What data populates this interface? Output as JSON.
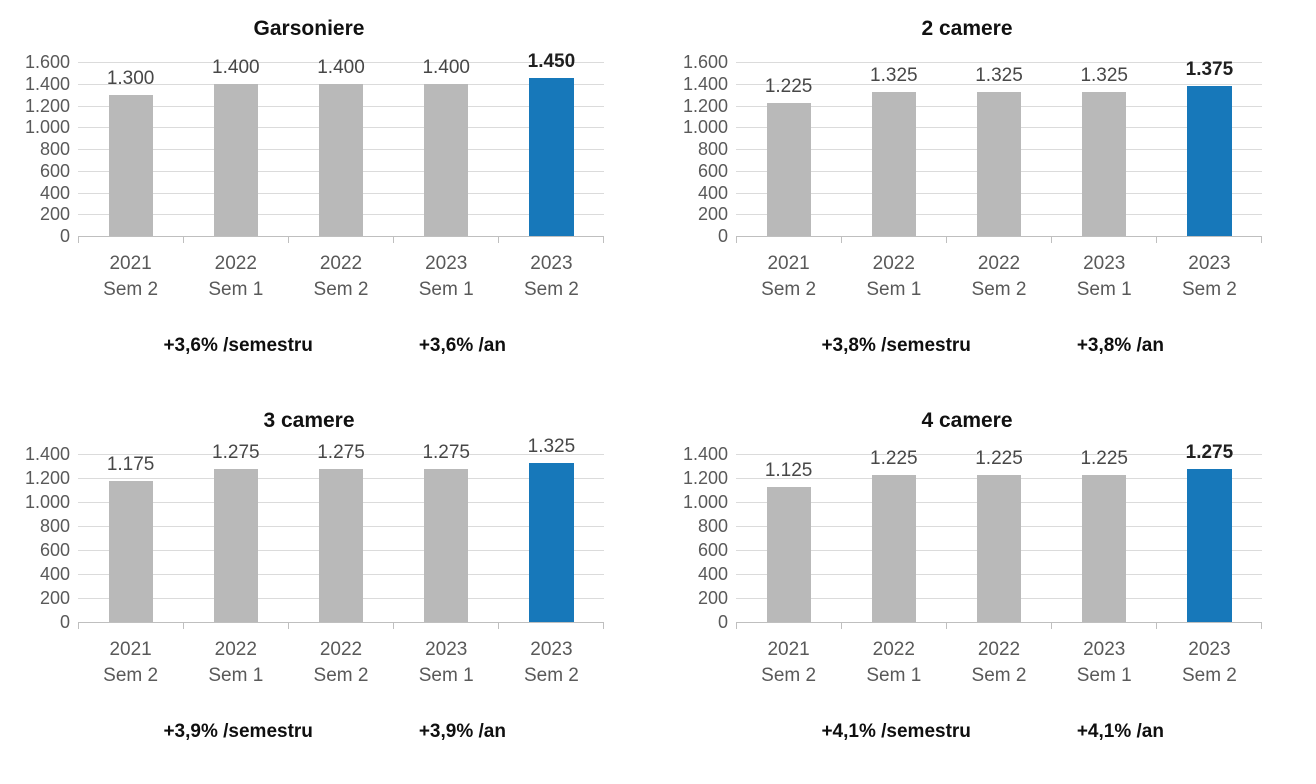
{
  "colors": {
    "bar_default": "#b9b9b9",
    "bar_highlight": "#1778ba",
    "grid_line": "#dbdbdb",
    "axis_line": "#bfbfbf",
    "axis_text": "#595959",
    "value_text": "#474747",
    "value_text_highlight": "#1f1f1f",
    "title_text": "#111111",
    "note_text": "#0f0f0f"
  },
  "chart_data": [
    {
      "type": "bar",
      "title": "Garsoniere",
      "categories": [
        "2021 Sem 2",
        "2022 Sem 1",
        "2022 Sem 2",
        "2023 Sem 1",
        "2023 Sem 2"
      ],
      "category_lines": [
        [
          "2021",
          "Sem 2"
        ],
        [
          "2022",
          "Sem 1"
        ],
        [
          "2022",
          "Sem 2"
        ],
        [
          "2023",
          "Sem 1"
        ],
        [
          "2023",
          "Sem 2"
        ]
      ],
      "values": [
        1300,
        1400,
        1400,
        1400,
        1450
      ],
      "value_labels": [
        "1.300",
        "1.400",
        "1.400",
        "1.400",
        "1.450"
      ],
      "highlight_index": 4,
      "highlight_label_bold": true,
      "ylim": [
        0,
        1600
      ],
      "ytick_values": [
        1600,
        1400,
        1200,
        1000,
        800,
        600,
        400,
        200,
        0
      ],
      "ytick_labels": [
        "1.600",
        "1.400",
        "1.200",
        "1.000",
        "800",
        "600",
        "400",
        "200",
        "0"
      ],
      "grid": true,
      "legend": null,
      "notes": [
        "+3,6% /semestru",
        "+3,6% /an"
      ]
    },
    {
      "type": "bar",
      "title": "2 camere",
      "categories": [
        "2021 Sem 2",
        "2022 Sem 1",
        "2022 Sem 2",
        "2023 Sem 1",
        "2023 Sem 2"
      ],
      "category_lines": [
        [
          "2021",
          "Sem 2"
        ],
        [
          "2022",
          "Sem 1"
        ],
        [
          "2022",
          "Sem 2"
        ],
        [
          "2023",
          "Sem 1"
        ],
        [
          "2023",
          "Sem 2"
        ]
      ],
      "values": [
        1225,
        1325,
        1325,
        1325,
        1375
      ],
      "value_labels": [
        "1.225",
        "1.325",
        "1.325",
        "1.325",
        "1.375"
      ],
      "highlight_index": 4,
      "highlight_label_bold": true,
      "ylim": [
        0,
        1600
      ],
      "ytick_values": [
        1600,
        1400,
        1200,
        1000,
        800,
        600,
        400,
        200,
        0
      ],
      "ytick_labels": [
        "1.600",
        "1.400",
        "1.200",
        "1.000",
        "800",
        "600",
        "400",
        "200",
        "0"
      ],
      "grid": true,
      "legend": null,
      "notes": [
        "+3,8% /semestru",
        "+3,8% /an"
      ]
    },
    {
      "type": "bar",
      "title": "3 camere",
      "categories": [
        "2021 Sem 2",
        "2022 Sem 1",
        "2022 Sem 2",
        "2023 Sem 1",
        "2023 Sem 2"
      ],
      "category_lines": [
        [
          "2021",
          "Sem 2"
        ],
        [
          "2022",
          "Sem 1"
        ],
        [
          "2022",
          "Sem 2"
        ],
        [
          "2023",
          "Sem 1"
        ],
        [
          "2023",
          "Sem 2"
        ]
      ],
      "values": [
        1175,
        1275,
        1275,
        1275,
        1325
      ],
      "value_labels": [
        "1.175",
        "1.275",
        "1.275",
        "1.275",
        "1.325"
      ],
      "highlight_index": 4,
      "highlight_label_bold": false,
      "ylim": [
        0,
        1400
      ],
      "ytick_values": [
        1400,
        1200,
        1000,
        800,
        600,
        400,
        200,
        0
      ],
      "ytick_labels": [
        "1.400",
        "1.200",
        "1.000",
        "800",
        "600",
        "400",
        "200",
        "0"
      ],
      "grid": true,
      "legend": null,
      "notes": [
        "+3,9% /semestru",
        "+3,9% /an"
      ]
    },
    {
      "type": "bar",
      "title": "4 camere",
      "categories": [
        "2021 Sem 2",
        "2022 Sem 1",
        "2022 Sem 2",
        "2023 Sem 1",
        "2023 Sem 2"
      ],
      "category_lines": [
        [
          "2021",
          "Sem 2"
        ],
        [
          "2022",
          "Sem 1"
        ],
        [
          "2022",
          "Sem 2"
        ],
        [
          "2023",
          "Sem 1"
        ],
        [
          "2023",
          "Sem 2"
        ]
      ],
      "values": [
        1125,
        1225,
        1225,
        1225,
        1275
      ],
      "value_labels": [
        "1.125",
        "1.225",
        "1.225",
        "1.225",
        "1.275"
      ],
      "highlight_index": 4,
      "highlight_label_bold": true,
      "ylim": [
        0,
        1400
      ],
      "ytick_values": [
        1400,
        1200,
        1000,
        800,
        600,
        400,
        200,
        0
      ],
      "ytick_labels": [
        "1.400",
        "1.200",
        "1.000",
        "800",
        "600",
        "400",
        "200",
        "0"
      ],
      "grid": true,
      "legend": null,
      "notes": [
        "+4,1% /semestru",
        "+4,1% /an"
      ]
    }
  ]
}
